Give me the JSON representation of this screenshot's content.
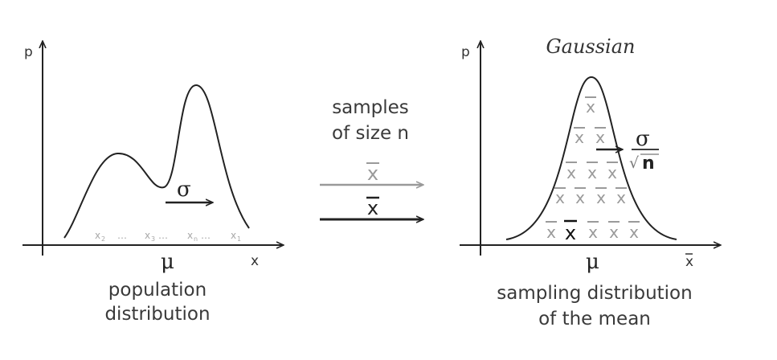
{
  "left_panel": {
    "y_axis_label": "p",
    "x_axis_label": "x",
    "sigma_label": "σ",
    "mu_label": "μ",
    "x_marks": [
      "x",
      "2",
      "…",
      "x",
      "3",
      "…",
      "x",
      "n",
      "…",
      "x",
      "1"
    ],
    "caption_line1": "population",
    "caption_line2": "distribution"
  },
  "middle": {
    "caption_line1": "samples",
    "caption_line2": "of size n",
    "gray_arrow_label": "x",
    "black_arrow_label": "x"
  },
  "right_panel": {
    "title": "Gaussian",
    "y_axis_label": "p",
    "x_axis_label": "x",
    "mu_label": "μ",
    "sigma_label": "σ",
    "sqrt_symbol": "√",
    "n_label": "n",
    "xbar_rows": [
      [
        "x",
        "x",
        "x",
        "x",
        "x"
      ],
      [
        "x",
        "x",
        "x",
        "x"
      ],
      [
        "x",
        "x",
        "x"
      ],
      [
        "x",
        "x"
      ],
      [
        "x"
      ]
    ],
    "caption_line1": "sampling distribution",
    "caption_line2": "of the mean"
  },
  "colors": {
    "axis": "#222222",
    "curve": "#222222",
    "gray": "#9a9a9a",
    "text": "#3a3a3a"
  }
}
